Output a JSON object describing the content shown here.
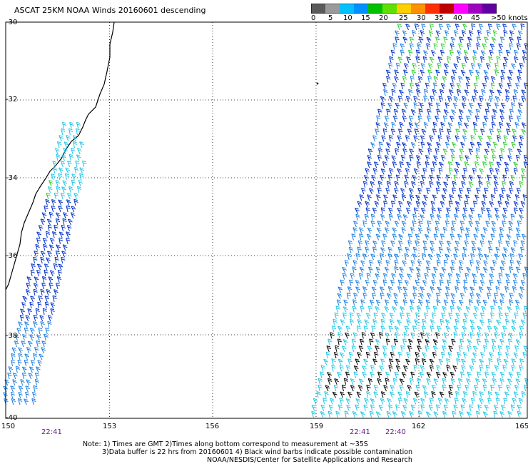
{
  "title": "ASCAT 25KM NOAA Winds 20160601 descending",
  "colorbar": {
    "labels": [
      "0",
      "5",
      "10",
      "15",
      "20",
      "25",
      "30",
      "35",
      "40",
      "45",
      ">50 knots"
    ],
    "colors": [
      "#5a5a5a",
      "#9a9a9a",
      "#00c0ff",
      "#0090ff",
      "#00c000",
      "#60e000",
      "#ffd000",
      "#ff9000",
      "#ff3000",
      "#c00000",
      "#ff00ff",
      "#a000c0",
      "#6000a0"
    ]
  },
  "axes": {
    "lon_ticks": [
      "150",
      "153",
      "156",
      "159",
      "162",
      "165"
    ],
    "lat_ticks": [
      "-30",
      "-32",
      "-34",
      "-36",
      "-38",
      "-40"
    ]
  },
  "pass_times": [
    {
      "label": "22:41"
    },
    {
      "label": "22:41"
    },
    {
      "label": "22:40"
    }
  ],
  "notes": {
    "line1": "Note: 1) Times are GMT 2)Times along bottom correspond to measurement at ~35S",
    "line2": "3)Data buffer is 22 hrs from 20160601 4) Black wind barbs indicate possible contamination",
    "line3": "NOAA/NESDIS/Center for Satellite Applications and Research"
  },
  "colors": {
    "blue": "#0030c8",
    "light_blue": "#1e7fe0",
    "cyan": "#22c6e6",
    "green": "#33cc33",
    "black": "#000000",
    "purple_time": "#6a1b8a"
  }
}
